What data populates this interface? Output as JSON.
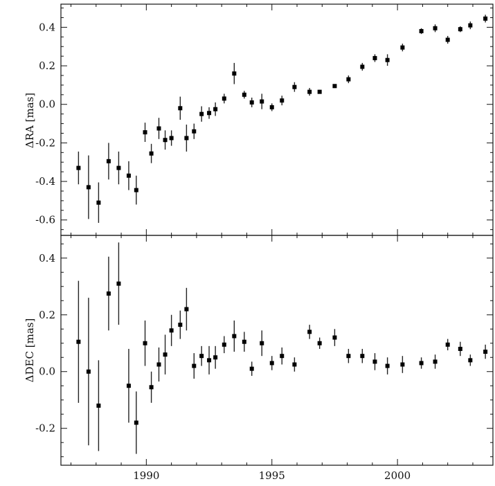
{
  "chart_data": [
    {
      "type": "scatter",
      "panel": "top",
      "ylabel": "ΔRA [mas]",
      "xlim": [
        1986.6,
        2003.8
      ],
      "ylim": [
        -0.68,
        0.52
      ],
      "yticks": [
        -0.6,
        -0.4,
        -0.2,
        0.0,
        0.2,
        0.4
      ],
      "ytick_labels": [
        "-0.6",
        "-0.4",
        "-0.2",
        "0.0",
        "0.2",
        "0.4"
      ],
      "error_bars": true,
      "points": [
        {
          "x": 1987.3,
          "y": -0.33,
          "err": 0.085
        },
        {
          "x": 1987.7,
          "y": -0.43,
          "err": 0.165
        },
        {
          "x": 1988.1,
          "y": -0.51,
          "err": 0.105
        },
        {
          "x": 1988.5,
          "y": -0.295,
          "err": 0.095
        },
        {
          "x": 1988.9,
          "y": -0.33,
          "err": 0.085
        },
        {
          "x": 1989.3,
          "y": -0.37,
          "err": 0.075
        },
        {
          "x": 1989.6,
          "y": -0.445,
          "err": 0.075
        },
        {
          "x": 1989.95,
          "y": -0.145,
          "err": 0.05
        },
        {
          "x": 1990.2,
          "y": -0.255,
          "err": 0.05
        },
        {
          "x": 1990.5,
          "y": -0.125,
          "err": 0.055
        },
        {
          "x": 1990.75,
          "y": -0.185,
          "err": 0.05
        },
        {
          "x": 1991.0,
          "y": -0.175,
          "err": 0.04
        },
        {
          "x": 1991.35,
          "y": -0.02,
          "err": 0.06
        },
        {
          "x": 1991.6,
          "y": -0.175,
          "err": 0.07
        },
        {
          "x": 1991.9,
          "y": -0.14,
          "err": 0.04
        },
        {
          "x": 1992.2,
          "y": -0.05,
          "err": 0.04
        },
        {
          "x": 1992.5,
          "y": -0.045,
          "err": 0.03
        },
        {
          "x": 1992.75,
          "y": -0.025,
          "err": 0.035
        },
        {
          "x": 1993.1,
          "y": 0.03,
          "err": 0.025
        },
        {
          "x": 1993.5,
          "y": 0.16,
          "err": 0.055
        },
        {
          "x": 1993.9,
          "y": 0.05,
          "err": 0.02
        },
        {
          "x": 1994.2,
          "y": 0.01,
          "err": 0.025
        },
        {
          "x": 1994.6,
          "y": 0.015,
          "err": 0.04
        },
        {
          "x": 1995.0,
          "y": -0.015,
          "err": 0.02
        },
        {
          "x": 1995.4,
          "y": 0.02,
          "err": 0.025
        },
        {
          "x": 1995.9,
          "y": 0.09,
          "err": 0.025
        },
        {
          "x": 1996.5,
          "y": 0.065,
          "err": 0.02
        },
        {
          "x": 1996.9,
          "y": 0.065,
          "err": 0.01
        },
        {
          "x": 1997.5,
          "y": 0.095,
          "err": 0.01
        },
        {
          "x": 1998.05,
          "y": 0.13,
          "err": 0.02
        },
        {
          "x": 1998.6,
          "y": 0.195,
          "err": 0.02
        },
        {
          "x": 1999.1,
          "y": 0.24,
          "err": 0.02
        },
        {
          "x": 1999.6,
          "y": 0.23,
          "err": 0.03
        },
        {
          "x": 2000.2,
          "y": 0.295,
          "err": 0.02
        },
        {
          "x": 2000.95,
          "y": 0.38,
          "err": 0.015
        },
        {
          "x": 2001.5,
          "y": 0.395,
          "err": 0.02
        },
        {
          "x": 2002.0,
          "y": 0.335,
          "err": 0.02
        },
        {
          "x": 2002.5,
          "y": 0.39,
          "err": 0.015
        },
        {
          "x": 2002.9,
          "y": 0.41,
          "err": 0.02
        },
        {
          "x": 2003.5,
          "y": 0.445,
          "err": 0.02
        }
      ]
    },
    {
      "type": "scatter",
      "panel": "bottom",
      "ylabel": "ΔDEC [mas]",
      "xlim": [
        1986.6,
        2003.8
      ],
      "ylim": [
        -0.33,
        0.48
      ],
      "yticks": [
        -0.2,
        0.0,
        0.2,
        0.4
      ],
      "ytick_labels": [
        "-0.2",
        "0.0",
        "0.2",
        "0.4"
      ],
      "xticks": [
        1990,
        1995,
        2000
      ],
      "xtick_labels": [
        "1990",
        "1995",
        "2000"
      ],
      "error_bars": true,
      "points": [
        {
          "x": 1987.3,
          "y": 0.105,
          "err": 0.215
        },
        {
          "x": 1987.7,
          "y": 0.0,
          "err": 0.26
        },
        {
          "x": 1988.1,
          "y": -0.12,
          "err": 0.16
        },
        {
          "x": 1988.5,
          "y": 0.275,
          "err": 0.13
        },
        {
          "x": 1988.9,
          "y": 0.31,
          "err": 0.145
        },
        {
          "x": 1989.3,
          "y": -0.05,
          "err": 0.13
        },
        {
          "x": 1989.6,
          "y": -0.18,
          "err": 0.11
        },
        {
          "x": 1989.95,
          "y": 0.1,
          "err": 0.08
        },
        {
          "x": 1990.2,
          "y": -0.055,
          "err": 0.055
        },
        {
          "x": 1990.5,
          "y": 0.025,
          "err": 0.06
        },
        {
          "x": 1990.75,
          "y": 0.06,
          "err": 0.07
        },
        {
          "x": 1991.0,
          "y": 0.145,
          "err": 0.055
        },
        {
          "x": 1991.35,
          "y": 0.165,
          "err": 0.05
        },
        {
          "x": 1991.6,
          "y": 0.22,
          "err": 0.075
        },
        {
          "x": 1991.9,
          "y": 0.02,
          "err": 0.045
        },
        {
          "x": 1992.2,
          "y": 0.055,
          "err": 0.035
        },
        {
          "x": 1992.5,
          "y": 0.04,
          "err": 0.05
        },
        {
          "x": 1992.75,
          "y": 0.05,
          "err": 0.04
        },
        {
          "x": 1993.1,
          "y": 0.095,
          "err": 0.03
        },
        {
          "x": 1993.5,
          "y": 0.125,
          "err": 0.055
        },
        {
          "x": 1993.9,
          "y": 0.105,
          "err": 0.035
        },
        {
          "x": 1994.2,
          "y": 0.01,
          "err": 0.025
        },
        {
          "x": 1994.6,
          "y": 0.1,
          "err": 0.045
        },
        {
          "x": 1995.0,
          "y": 0.03,
          "err": 0.025
        },
        {
          "x": 1995.4,
          "y": 0.055,
          "err": 0.03
        },
        {
          "x": 1995.9,
          "y": 0.025,
          "err": 0.025
        },
        {
          "x": 1996.5,
          "y": 0.14,
          "err": 0.025
        },
        {
          "x": 1996.9,
          "y": 0.1,
          "err": 0.02
        },
        {
          "x": 1997.5,
          "y": 0.12,
          "err": 0.03
        },
        {
          "x": 1998.05,
          "y": 0.055,
          "err": 0.025
        },
        {
          "x": 1998.6,
          "y": 0.055,
          "err": 0.025
        },
        {
          "x": 1999.1,
          "y": 0.035,
          "err": 0.03
        },
        {
          "x": 1999.6,
          "y": 0.02,
          "err": 0.03
        },
        {
          "x": 2000.2,
          "y": 0.025,
          "err": 0.03
        },
        {
          "x": 2000.95,
          "y": 0.03,
          "err": 0.02
        },
        {
          "x": 2001.5,
          "y": 0.035,
          "err": 0.025
        },
        {
          "x": 2002.0,
          "y": 0.095,
          "err": 0.02
        },
        {
          "x": 2002.5,
          "y": 0.08,
          "err": 0.025
        },
        {
          "x": 2002.9,
          "y": 0.04,
          "err": 0.02
        },
        {
          "x": 2003.5,
          "y": 0.07,
          "err": 0.025
        }
      ]
    }
  ]
}
